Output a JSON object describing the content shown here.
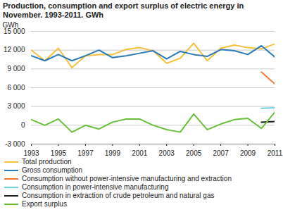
{
  "chart_data": {
    "type": "line",
    "title": "Production, consumption and export surplus of electric energy in November. 1993-2011. GWh",
    "y_label": "GWh",
    "x": [
      1993,
      1994,
      1995,
      1996,
      1997,
      1998,
      1999,
      2000,
      2001,
      2002,
      2003,
      2004,
      2005,
      2006,
      2007,
      2008,
      2009,
      2010,
      2011
    ],
    "series": [
      {
        "name": "Total production",
        "color": "#f3c13a",
        "values": [
          12000,
          10300,
          12300,
          9200,
          11100,
          11300,
          11300,
          12100,
          12400,
          11900,
          9900,
          10700,
          13100,
          10300,
          12300,
          12800,
          12400,
          12200,
          13000
        ]
      },
      {
        "name": "Gross consumption",
        "color": "#2a7ab9",
        "values": [
          11100,
          10300,
          11300,
          10300,
          11100,
          12000,
          10800,
          11100,
          11500,
          11900,
          10600,
          11800,
          11300,
          11000,
          12100,
          11900,
          11300,
          12700,
          10900
        ]
      },
      {
        "name": "Consumption without power-intensive manufacturing and extraction",
        "color": "#ef7b3b",
        "values": [
          null,
          null,
          null,
          null,
          null,
          null,
          null,
          null,
          null,
          null,
          null,
          null,
          null,
          null,
          null,
          null,
          null,
          8500,
          6600
        ]
      },
      {
        "name": "Consumption in power-intensive manufacturing",
        "color": "#72cfe0",
        "values": [
          null,
          null,
          null,
          null,
          null,
          null,
          null,
          null,
          null,
          null,
          null,
          null,
          null,
          null,
          null,
          null,
          null,
          2700,
          2800
        ]
      },
      {
        "name": "Consumption in extraction of crude petroleum and natural gas",
        "color": "#1a1a1a",
        "values": [
          null,
          null,
          null,
          null,
          null,
          null,
          null,
          null,
          null,
          null,
          null,
          null,
          null,
          null,
          null,
          null,
          null,
          500,
          600
        ]
      },
      {
        "name": "Export surplus",
        "color": "#6abf3a",
        "values": [
          900,
          0,
          1000,
          -1100,
          0,
          -600,
          500,
          1000,
          1000,
          0,
          -700,
          -1100,
          1800,
          -700,
          200,
          900,
          1100,
          -500,
          2100
        ]
      }
    ],
    "xlim": [
      1993,
      2011
    ],
    "xticks": [
      1993,
      1995,
      1997,
      1999,
      2001,
      2003,
      2005,
      2007,
      2009,
      2011
    ],
    "ylim": [
      -3000,
      15000
    ],
    "yticks": [
      {
        "value": -3000,
        "label": "-3 000"
      },
      0,
      {
        "value": 3000,
        "label": "3 000"
      },
      {
        "value": 6000,
        "label": "6 000"
      },
      {
        "value": 9000,
        "label": "9 000"
      },
      {
        "value": 12000,
        "label": "12 000"
      },
      {
        "value": 15000,
        "label": "15 000"
      }
    ],
    "grid": true,
    "legend": "bottom"
  }
}
